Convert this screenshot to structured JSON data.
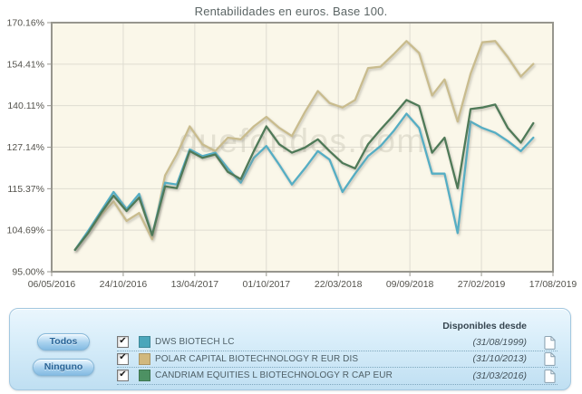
{
  "title": "Rentabilidades en euros. Base 100.",
  "watermark": "quefondos.com",
  "chart_data": {
    "type": "line",
    "title": "Rentabilidades en euros. Base 100.",
    "y_axis": {
      "scale": "log",
      "min": 95,
      "max": 170.16,
      "unit": "%",
      "ticks": [
        {
          "label": "170.16%",
          "value": 170.16
        },
        {
          "label": "154.41%",
          "value": 154.41
        },
        {
          "label": "140.11%",
          "value": 140.11
        },
        {
          "label": "127.14%",
          "value": 127.14
        },
        {
          "label": "115.37%",
          "value": 115.37
        },
        {
          "label": "104.69%",
          "value": 104.69
        },
        {
          "label": "95.00%",
          "value": 95
        }
      ]
    },
    "x_axis": {
      "start": "2016-05-06",
      "end": "2019-08-17",
      "ticks": [
        {
          "label": "06/05/2016",
          "date": "2016-05-06"
        },
        {
          "label": "24/10/2016",
          "date": "2016-10-24"
        },
        {
          "label": "13/04/2017",
          "date": "2017-04-13"
        },
        {
          "label": "01/10/2017",
          "date": "2017-10-01"
        },
        {
          "label": "22/03/2018",
          "date": "2018-03-22"
        },
        {
          "label": "09/09/2018",
          "date": "2018-09-09"
        },
        {
          "label": "27/02/2019",
          "date": "2019-02-27"
        },
        {
          "label": "17/08/2019",
          "date": "2019-08-17"
        }
      ]
    },
    "months": [
      "2016-07",
      "2016-08",
      "2016-09",
      "2016-10",
      "2016-11",
      "2016-12",
      "2017-01",
      "2017-02",
      "2017-03",
      "2017-04",
      "2017-05",
      "2017-06",
      "2017-07",
      "2017-08",
      "2017-09",
      "2017-10",
      "2017-11",
      "2017-12",
      "2018-01",
      "2018-02",
      "2018-03",
      "2018-04",
      "2018-05",
      "2018-06",
      "2018-07",
      "2018-08",
      "2018-09",
      "2018-10",
      "2018-11",
      "2018-12",
      "2019-01",
      "2019-02",
      "2019-03",
      "2019-04",
      "2019-05",
      "2019-06",
      "2019-07"
    ],
    "series": [
      {
        "name": "DWS BIOTECH LC",
        "color": "#54AEC4",
        "legend_color": "#4BA6BB",
        "available_since": "(31/08/1999)",
        "checked": true,
        "values": [
          100,
          104.5,
          109.5,
          114.5,
          110,
          114,
          103.5,
          117,
          116.5,
          126.5,
          124.5,
          125.5,
          121,
          117,
          124,
          127.5,
          122,
          116.5,
          121,
          126,
          123.5,
          114.5,
          119.5,
          124.5,
          127.5,
          132,
          137.5,
          133,
          119.5,
          119.5,
          104,
          135,
          133,
          131.5,
          129,
          126,
          130
        ]
      },
      {
        "name": "POLAR CAPITAL BIOTECHNOLOGY R EUR DIS",
        "color": "#C9BC8E",
        "legend_color": "#D1B87D",
        "available_since": "(31/10/2013)",
        "checked": true,
        "values": [
          100,
          104,
          108.5,
          112,
          107,
          109,
          102.5,
          119,
          125,
          133.5,
          128,
          126,
          130,
          129.5,
          133.5,
          136.5,
          133,
          130.5,
          138,
          145,
          141,
          139.5,
          142,
          153,
          153.5,
          158,
          163,
          158.5,
          143.5,
          149,
          135,
          151,
          162.5,
          163,
          157,
          150,
          154.5
        ]
      },
      {
        "name": "CANDRIAM EQUITIES L BIOTECHNOLOGY R CAP EUR",
        "color": "#4F7A58",
        "legend_color": "#4D9163",
        "available_since": "(31/03/2016)",
        "checked": true,
        "values": [
          100,
          104,
          109,
          113.5,
          109.5,
          113,
          103.5,
          116,
          115.5,
          126,
          124,
          125,
          120,
          118,
          126,
          133.5,
          128,
          125.5,
          127,
          129.5,
          126,
          122.5,
          121,
          128,
          132.5,
          137,
          142,
          140,
          125.5,
          130,
          115.5,
          139,
          139.5,
          140.5,
          133,
          128.5,
          134.5
        ]
      }
    ],
    "layout_hints": {
      "plot_bg": "#FAF7E9",
      "grid_color": "#DFDCD1",
      "axis_color": "#97968E",
      "label_color": "#54534D",
      "grid": true,
      "legend_position": "bottom-panel"
    }
  },
  "legend": {
    "buttons": [
      {
        "label": "Todos"
      },
      {
        "label": "Ninguno"
      }
    ],
    "header": "Disponibles desde",
    "row_icon": "document-icon",
    "accent_color": "#BFDFF2"
  }
}
